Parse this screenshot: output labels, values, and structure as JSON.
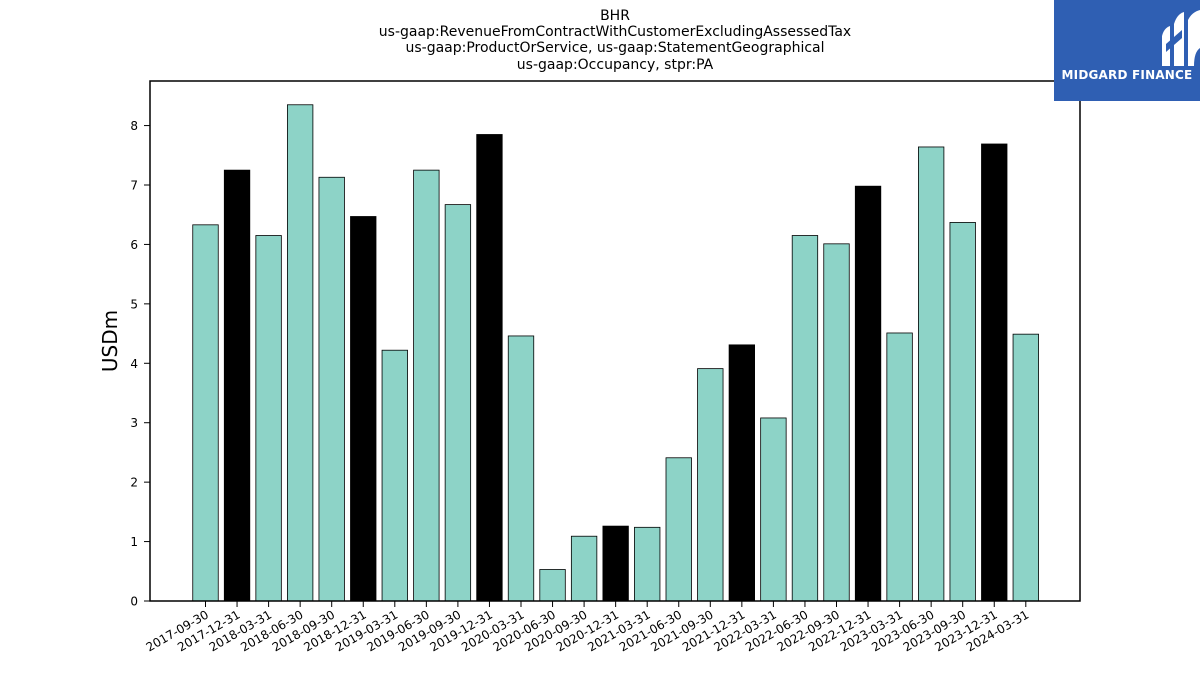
{
  "chart_data": {
    "type": "bar",
    "title_lines": [
      "BHR",
      "us-gaap:RevenueFromContractWithCustomerExcludingAssessedTax",
      "us-gaap:ProductOrService, us-gaap:StatementGeographical",
      "us-gaap:Occupancy, stpr:PA"
    ],
    "ylabel": "USDm",
    "ylim": [
      0,
      8.75
    ],
    "yticks": [
      0,
      1,
      2,
      3,
      4,
      5,
      6,
      7,
      8
    ],
    "categories": [
      "2017-09-30",
      "2017-12-31",
      "2018-03-31",
      "2018-06-30",
      "2018-09-30",
      "2018-12-31",
      "2019-03-31",
      "2019-06-30",
      "2019-09-30",
      "2019-12-31",
      "2020-03-31",
      "2020-06-30",
      "2020-09-30",
      "2020-12-31",
      "2021-03-31",
      "2021-06-30",
      "2021-09-30",
      "2021-12-31",
      "2022-03-31",
      "2022-06-30",
      "2022-09-30",
      "2022-12-31",
      "2023-03-31",
      "2023-06-30",
      "2023-09-30",
      "2023-12-31",
      "2024-03-31"
    ],
    "values": [
      6.33,
      7.25,
      6.15,
      8.35,
      7.13,
      6.47,
      4.22,
      7.25,
      6.67,
      7.85,
      4.46,
      0.53,
      1.09,
      1.26,
      1.24,
      2.41,
      3.91,
      4.31,
      3.08,
      6.15,
      6.01,
      6.98,
      4.51,
      7.64,
      6.37,
      7.69,
      4.49
    ],
    "year_end_flags": [
      false,
      true,
      false,
      false,
      false,
      true,
      false,
      false,
      false,
      true,
      false,
      false,
      false,
      true,
      false,
      false,
      false,
      true,
      false,
      false,
      false,
      true,
      false,
      false,
      false,
      true,
      false
    ],
    "colors": {
      "regular": "#8dd3c7",
      "year_end": "#000000",
      "edge": "#000000"
    },
    "grid": false,
    "legend": "none"
  },
  "logo": {
    "text": "MIDGARD FINANCE",
    "icon": "midgard-logo-icon",
    "background": "#2f5fb3"
  }
}
